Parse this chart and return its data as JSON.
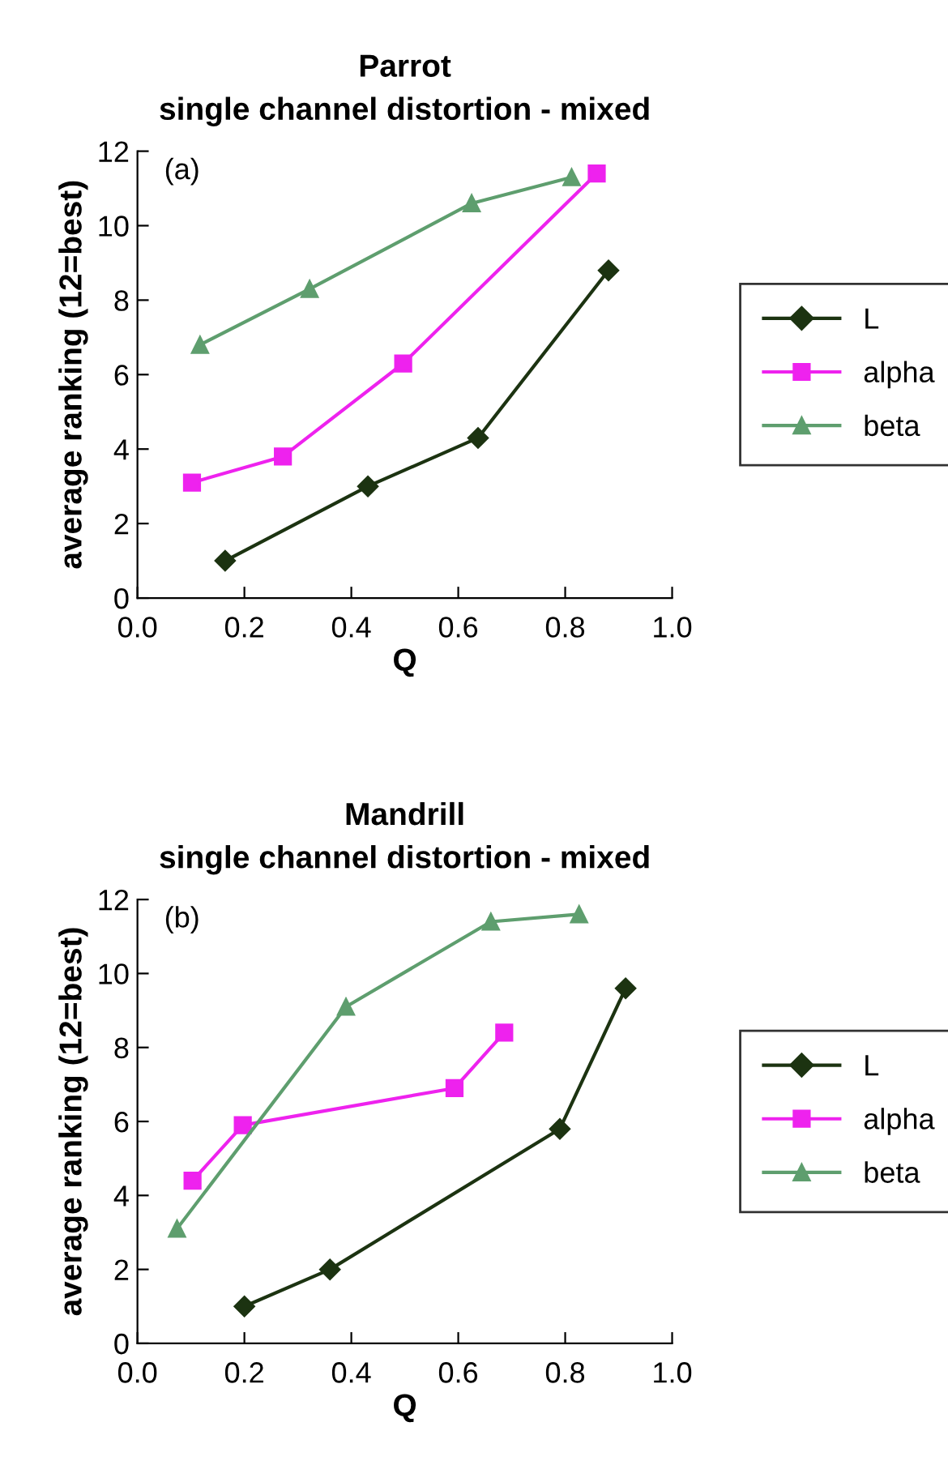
{
  "chart_data": [
    {
      "type": "line",
      "title": "Parrot\nsingle channel distortion - mixed",
      "xlabel": "Q",
      "ylabel": "average ranking (12=best)",
      "annotations": [
        "(a)"
      ],
      "xlim": [
        0,
        1
      ],
      "xticks": [
        {
          "value": 0,
          "label": "0.0"
        },
        {
          "value": 0.2,
          "label": "0.2"
        },
        {
          "value": 0.4,
          "label": "0.4"
        },
        {
          "value": 0.6,
          "label": "0.6"
        },
        {
          "value": 0.8,
          "label": "0.8"
        },
        {
          "value": 1,
          "label": "1.0"
        }
      ],
      "ylim": [
        0,
        12
      ],
      "yticks": [
        0,
        2,
        4,
        6,
        8,
        10,
        12
      ],
      "grid": false,
      "legend": "right",
      "series": [
        {
          "name": "L",
          "color": "#1c3311",
          "marker": "diamond",
          "x": [
            0.164,
            0.431,
            0.637,
            0.881
          ],
          "values": [
            1.0,
            3.0,
            4.3,
            8.8
          ]
        },
        {
          "name": "alpha",
          "color": "#ee22ee",
          "marker": "square",
          "x": [
            0.102,
            0.272,
            0.497,
            0.859
          ],
          "values": [
            3.1,
            3.8,
            6.3,
            11.4
          ]
        },
        {
          "name": "beta",
          "color": "#5e9e6e",
          "marker": "triangle",
          "x": [
            0.117,
            0.322,
            0.625,
            0.812
          ],
          "values": [
            6.8,
            8.3,
            10.6,
            11.3
          ]
        }
      ]
    },
    {
      "type": "line",
      "title": "Mandrill\nsingle channel distortion - mixed",
      "xlabel": "Q",
      "ylabel": "average ranking (12=best)",
      "annotations": [
        "(b)"
      ],
      "xlim": [
        0,
        1
      ],
      "xticks": [
        {
          "value": 0,
          "label": "0.0"
        },
        {
          "value": 0.2,
          "label": "0.2"
        },
        {
          "value": 0.4,
          "label": "0.4"
        },
        {
          "value": 0.6,
          "label": "0.6"
        },
        {
          "value": 0.8,
          "label": "0.8"
        },
        {
          "value": 1,
          "label": "1.0"
        }
      ],
      "ylim": [
        0,
        12
      ],
      "yticks": [
        0,
        2,
        4,
        6,
        8,
        10,
        12
      ],
      "grid": false,
      "legend": "right",
      "series": [
        {
          "name": "L",
          "color": "#1c3311",
          "marker": "diamond",
          "x": [
            0.2,
            0.36,
            0.79,
            0.913
          ],
          "values": [
            1.0,
            2.0,
            5.8,
            9.6
          ]
        },
        {
          "name": "alpha",
          "color": "#ee22ee",
          "marker": "square",
          "x": [
            0.103,
            0.197,
            0.593,
            0.686
          ],
          "values": [
            4.4,
            5.9,
            6.9,
            8.4
          ]
        },
        {
          "name": "beta",
          "color": "#5e9e6e",
          "marker": "triangle",
          "x": [
            0.074,
            0.39,
            0.661,
            0.826
          ],
          "values": [
            3.1,
            9.1,
            11.4,
            11.6
          ]
        }
      ]
    }
  ]
}
